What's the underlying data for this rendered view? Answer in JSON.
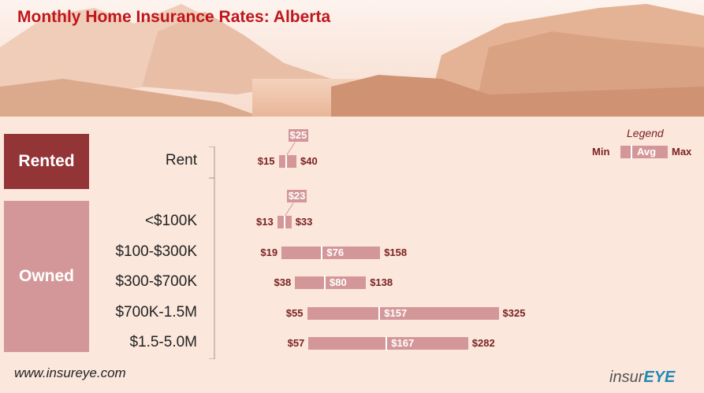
{
  "title": "Monthly Home Insurance Rates: Alberta",
  "groups": [
    {
      "label": "Rented"
    },
    {
      "label": "Owned"
    }
  ],
  "legend": {
    "title": "Legend",
    "min": "Min",
    "avg": "Avg",
    "max": "Max"
  },
  "footer": {
    "website": "www.insureye.com",
    "logo_part1": "insur",
    "logo_part2": "EYE"
  },
  "colors": {
    "bar": "#d49799",
    "rented": "#933437",
    "owned": "#d49799",
    "title": "#c0161c"
  },
  "chart_data": {
    "type": "bar",
    "orientation": "horizontal-range",
    "categories": [
      "Rent",
      "<$100K",
      "$100-$300K",
      "$300-$700K",
      "$700K-1.5M",
      "$1.5-5.0M"
    ],
    "groups_by_category": [
      "Rented",
      "Owned",
      "Owned",
      "Owned",
      "Owned",
      "Owned"
    ],
    "series": [
      {
        "name": "Min",
        "values": [
          15,
          13,
          19,
          38,
          55,
          57
        ]
      },
      {
        "name": "Avg",
        "values": [
          25,
          23,
          76,
          80,
          157,
          167
        ]
      },
      {
        "name": "Max",
        "values": [
          40,
          33,
          158,
          138,
          325,
          282
        ]
      }
    ],
    "min_labels": [
      "$15",
      "$13",
      "$19",
      "$38",
      "$55",
      "$57"
    ],
    "avg_labels": [
      "$25",
      "$23",
      "$76",
      "$80",
      "$157",
      "$167"
    ],
    "max_labels": [
      "$40",
      "$33",
      "$158",
      "$138",
      "$325",
      "$282"
    ],
    "title": "Monthly Home Insurance Rates: Alberta",
    "xlabel": "",
    "ylabel": "",
    "grid": false,
    "legend_position": "top-right"
  }
}
